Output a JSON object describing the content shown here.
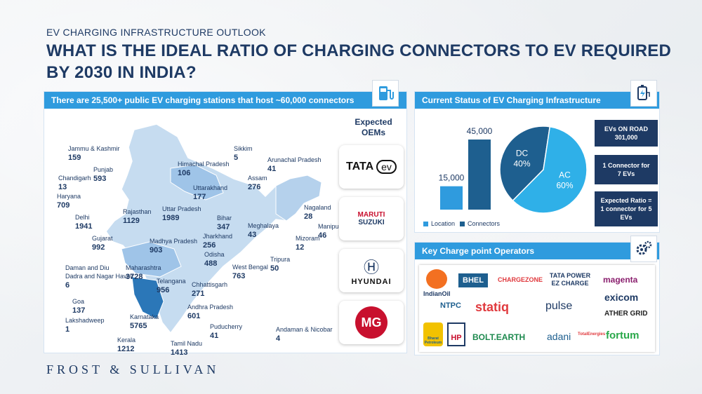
{
  "header": {
    "eyebrow": "EV CHARGING INFRASTRUCTURE OUTLOOK",
    "title": "WHAT IS THE IDEAL RATIO OF CHARGING CONNECTORS TO EV REQUIRED BY 2030 IN INDIA?"
  },
  "left_panel": {
    "header": "There are 25,500+ public EV charging stations that host ~60,000 connectors",
    "oems_title_line1": "Expected",
    "oems_title_line2": "OEMs",
    "oems": [
      {
        "name": "TATA",
        "sub": "ev"
      },
      {
        "name": "MARUTI",
        "sub": "SUZUKI"
      },
      {
        "name": "HYUNDAI",
        "sub": ""
      },
      {
        "name": "MG",
        "sub": ""
      }
    ]
  },
  "states": [
    {
      "name": "Jammu & Kashmir",
      "value": "159"
    },
    {
      "name": "Punjab",
      "value": "593"
    },
    {
      "name": "Chandigarh",
      "value": "13"
    },
    {
      "name": "Haryana",
      "value": "709"
    },
    {
      "name": "Delhi",
      "value": "1941"
    },
    {
      "name": "Himachal Pradesh",
      "value": "106"
    },
    {
      "name": "Uttarakhand",
      "value": "177"
    },
    {
      "name": "Uttar Pradesh",
      "value": "1989"
    },
    {
      "name": "Rajasthan",
      "value": "1129"
    },
    {
      "name": "Gujarat",
      "value": "992"
    },
    {
      "name": "Madhya Pradesh",
      "value": "903"
    },
    {
      "name": "Daman and Diu",
      "value": ""
    },
    {
      "name": "Dadra and Nagar Haveli",
      "value": "6"
    },
    {
      "name": "Maharashtra",
      "value": "3728"
    },
    {
      "name": "Goa",
      "value": "137"
    },
    {
      "name": "Lakshadweep",
      "value": "1"
    },
    {
      "name": "Karnataka",
      "value": "5765"
    },
    {
      "name": "Kerala",
      "value": "1212"
    },
    {
      "name": "Tamil Nadu",
      "value": "1413"
    },
    {
      "name": "Puducherry",
      "value": "41"
    },
    {
      "name": "Andhra Pradesh",
      "value": "601"
    },
    {
      "name": "Telangana",
      "value": "956"
    },
    {
      "name": "Chhattisgarh",
      "value": "271"
    },
    {
      "name": "Odisha",
      "value": "488"
    },
    {
      "name": "Jharkhand",
      "value": "256"
    },
    {
      "name": "Bihar",
      "value": "347"
    },
    {
      "name": "West Bengal",
      "value": "763"
    },
    {
      "name": "Sikkim",
      "value": "5"
    },
    {
      "name": "Arunachal Pradesh",
      "value": "41"
    },
    {
      "name": "Assam",
      "value": "276"
    },
    {
      "name": "Meghalaya",
      "value": "43"
    },
    {
      "name": "Nagaland",
      "value": "28"
    },
    {
      "name": "Manipur",
      "value": "46"
    },
    {
      "name": "Mizoram",
      "value": "12"
    },
    {
      "name": "Tripura",
      "value": "50"
    },
    {
      "name": "Andaman & Nicobar",
      "value": "4"
    }
  ],
  "status_panel": {
    "header": "Current Status of EV Charging Infrastructure",
    "info": [
      {
        "line1": "EVs ON ROAD",
        "line2": "301,000"
      },
      {
        "line1": "1 Connector for",
        "line2": "7 EVs"
      },
      {
        "line1": "Expected Ratio =",
        "line2": "1 connector for 5 EVs"
      }
    ]
  },
  "operators_panel": {
    "header": "Key Charge point Operators",
    "logos": [
      "IndianOil",
      "BHEL",
      "CHARGEZONE",
      "TATA POWER EZ CHARGE",
      "magenta",
      "NTPC",
      "statiq",
      "pulse",
      "exicom",
      "ATHER GRID",
      "Bharat Petroleum",
      "HP",
      "BOLT.EARTH",
      "adani",
      "TotalEnergies",
      "fortum"
    ]
  },
  "chart_data": [
    {
      "type": "bar",
      "categories": [
        "Location",
        "Connectors"
      ],
      "values": [
        15000,
        45000
      ],
      "data_labels": [
        "15,000",
        "45,000"
      ],
      "colors": [
        "#2f9bde",
        "#1e5f8f"
      ],
      "legend": [
        "Location",
        "Connectors"
      ],
      "legend_position": "bottom"
    },
    {
      "type": "pie",
      "categories": [
        "DC",
        "AC"
      ],
      "values": [
        40,
        60
      ],
      "data_labels": [
        "40%",
        "60%"
      ],
      "colors": [
        "#1e5f8f",
        "#2fb0e8"
      ]
    }
  ],
  "footer": {
    "brand": "FROST & SULLIVAN"
  },
  "colors": {
    "accent": "#2f9bde",
    "navy": "#1e3a64",
    "map_light": "#c6dcf0",
    "map_mid": "#9fc4e8",
    "map_dark": "#2b77b8"
  }
}
